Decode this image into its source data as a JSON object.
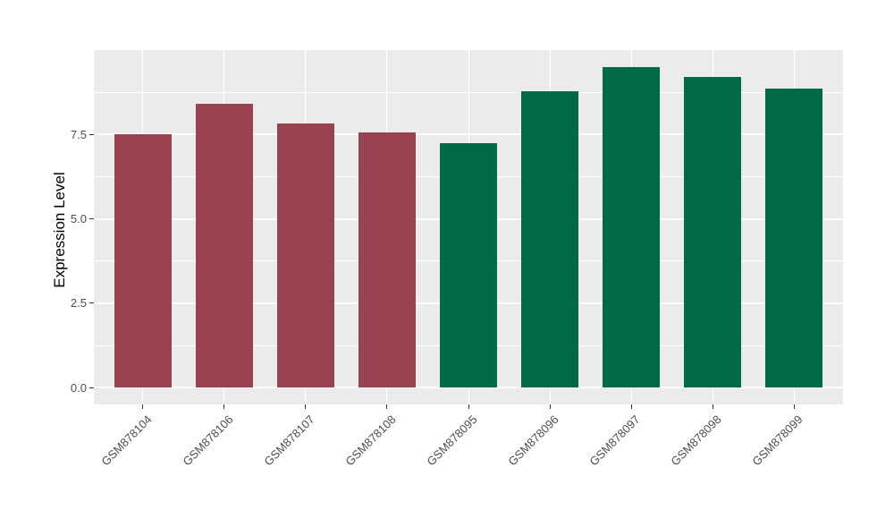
{
  "chart_data": {
    "type": "bar",
    "title": "",
    "xlabel": "",
    "ylabel": "Expression Level",
    "categories": [
      "GSM878104",
      "GSM878106",
      "GSM878107",
      "GSM878108",
      "GSM878095",
      "GSM878096",
      "GSM878097",
      "GSM878098",
      "GSM878099"
    ],
    "values": [
      7.5,
      8.42,
      7.82,
      7.55,
      7.23,
      8.77,
      9.5,
      9.21,
      8.86
    ],
    "bar_colors": [
      "#9A4350",
      "#9A4350",
      "#9A4350",
      "#9A4350",
      "#006A47",
      "#006A47",
      "#006A47",
      "#006A47",
      "#006A47"
    ],
    "y_ticks": [
      0.0,
      2.5,
      5.0,
      7.5
    ],
    "y_tick_labels": [
      "0.0",
      "2.5",
      "5.0",
      "7.5"
    ],
    "y_minor_ticks": [
      1.25,
      3.75,
      6.25,
      8.75
    ],
    "ylim": [
      -0.5,
      10.0
    ],
    "grid": true,
    "legend_position": "none",
    "panel_bg": "#EBEBEB",
    "grid_color": "#FFFFFF",
    "tick_label_color": "#4D4D4D",
    "axis_title_color": "#000000",
    "x_tick_angle": 45,
    "bar_width_frac": 0.7,
    "x_expand": 0.6
  }
}
